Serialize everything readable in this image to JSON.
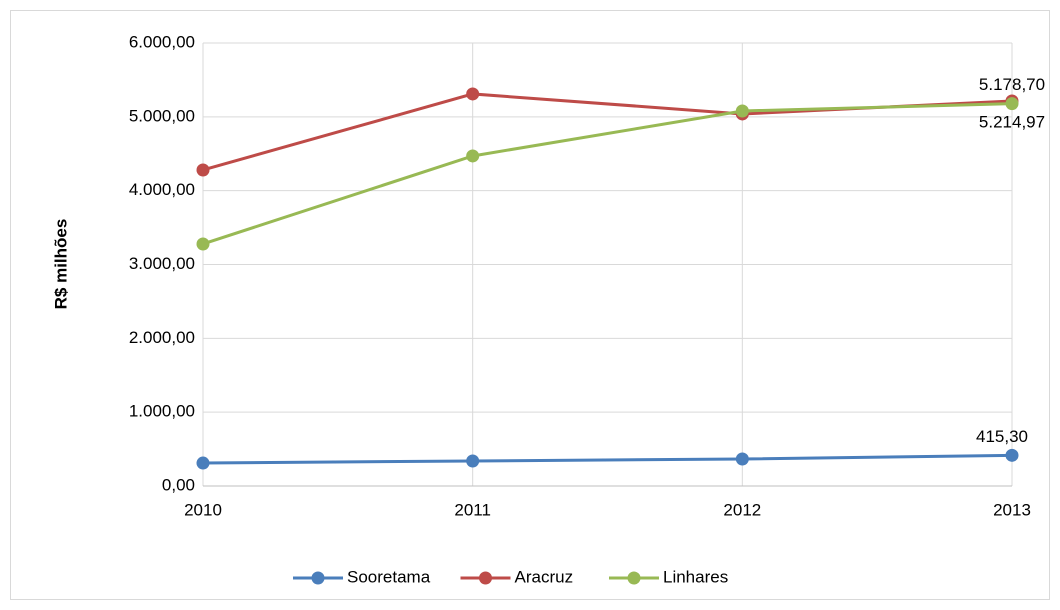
{
  "chart_data": {
    "type": "line",
    "y_label": "R$ milhões",
    "categories": [
      "2010",
      "2011",
      "2012",
      "2013"
    ],
    "series": [
      {
        "name": "Sooretama",
        "color": "#4a7ebb",
        "values": [
          311,
          339,
          366,
          415.3
        ],
        "value_labels": [
          null,
          null,
          null,
          "415,30"
        ]
      },
      {
        "name": "Aracruz",
        "color": "#be4b48",
        "values": [
          4280,
          5310,
          5039,
          5214.97
        ],
        "value_labels": [
          null,
          null,
          null,
          "5.214,97"
        ]
      },
      {
        "name": "Linhares",
        "color": "#98b954",
        "values": [
          3278,
          4470,
          5079,
          5178.7
        ],
        "value_labels": [
          null,
          null,
          null,
          "5.178,70"
        ]
      }
    ],
    "ylim": [
      0,
      6000
    ],
    "yticks": [
      {
        "value": 0,
        "label": "0,00"
      },
      {
        "value": 1000,
        "label": "1.000,00"
      },
      {
        "value": 2000,
        "label": "2.000,00"
      },
      {
        "value": 3000,
        "label": "3.000,00"
      },
      {
        "value": 4000,
        "label": "4.000,00"
      },
      {
        "value": 5000,
        "label": "5.000,00"
      },
      {
        "value": 6000,
        "label": "6.000,00"
      }
    ],
    "grid": true,
    "legend": "bottom"
  }
}
